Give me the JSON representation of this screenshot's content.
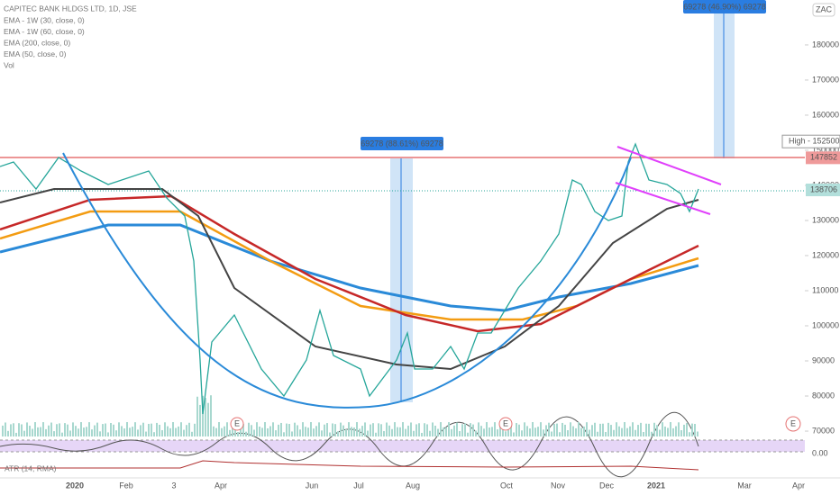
{
  "legend": {
    "symbol": "CAPITEC BANK HLDGS LTD, 1D, JSE",
    "indicators": [
      "EMA - 1W (30, close, 0)",
      "EMA - 1W (60, close, 0)",
      "EMA (200, close, 0)",
      "EMA (50, close, 0)",
      "Vol"
    ]
  },
  "currency": "ZAC",
  "price_axis": {
    "ylim": [
      67700,
      192800
    ],
    "ticks": [
      70000,
      80000,
      90000,
      100000,
      110000,
      120000,
      130000,
      140000,
      150000,
      160000,
      170000,
      180000
    ],
    "high_label": "High - 152500",
    "high_value": 152500,
    "resistance": 147852,
    "last_price": 138706
  },
  "time_axis": [
    "2020",
    "Feb",
    "3",
    "Apr",
    "Jun",
    "Jul",
    "Aug",
    "Oct",
    "Nov",
    "Dec",
    "2021",
    "Mar",
    "Apr"
  ],
  "measures": [
    "69278 (88.61%) 69278",
    "69278 (46.90%) 69278"
  ],
  "earnings_marker": "E",
  "lower_panels": {
    "atr": "ATR (14, RMA)",
    "atr_axis": "0.00"
  }
}
